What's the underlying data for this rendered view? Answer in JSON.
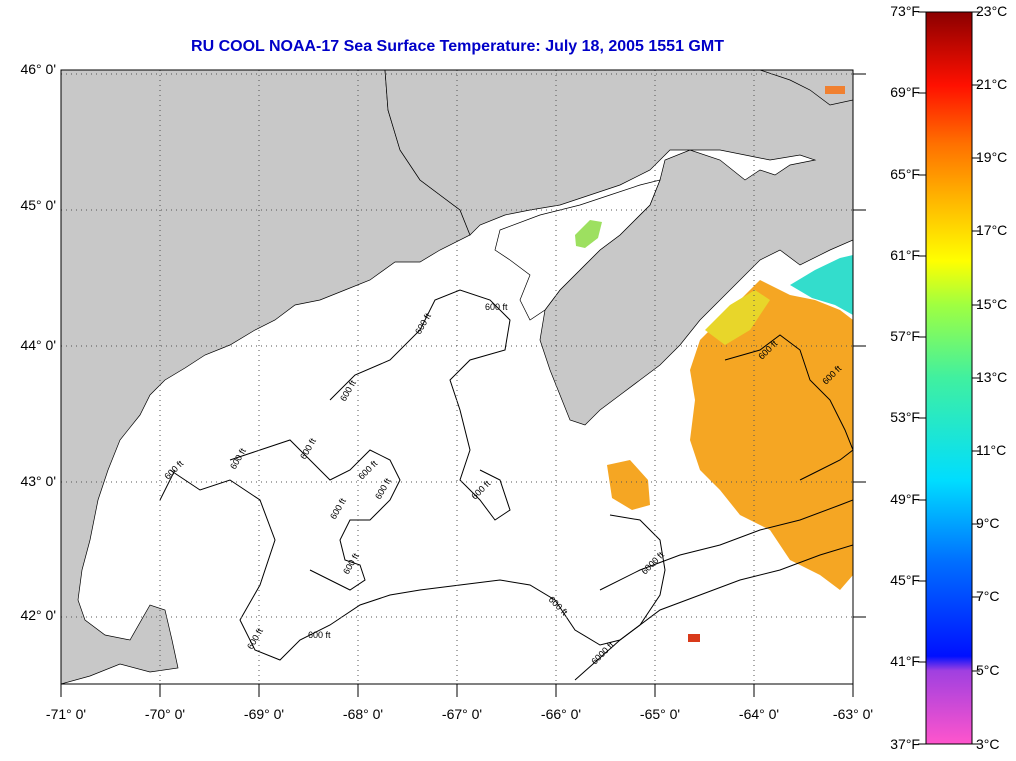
{
  "title": "RU COOL  NOAA-17  Sea Surface Temperature:  July 18, 2005 1551 GMT",
  "lat_labels": [
    "46° 0'",
    "45° 0'",
    "44° 0'",
    "43° 0'",
    "42° 0'"
  ],
  "lon_labels": [
    "-71° 0'",
    "-70° 0'",
    "-69° 0'",
    "-68° 0'",
    "-67° 0'",
    "-66° 0'",
    "-65° 0'",
    "-64° 0'",
    "-63° 0'"
  ],
  "contour_labels": [
    "600 ft",
    "600 ft",
    "600 ft",
    "600 ft",
    "600 ft",
    "600 ft",
    "600 ft",
    "600 ft",
    "600 ft",
    "600 ft",
    "600 ft",
    "600 ft",
    "600 ft",
    "6000 ft",
    "600 ft",
    "6000 ft",
    "600 ft",
    "600 ft"
  ],
  "colorbar": {
    "fahrenheit_labels": [
      "73°F",
      "69°F",
      "65°F",
      "61°F",
      "57°F",
      "53°F",
      "49°F",
      "45°F",
      "41°F",
      "37°F"
    ],
    "celsius_labels": [
      "23°C",
      "21°C",
      "19°C",
      "17°C",
      "15°C",
      "13°C",
      "11°C",
      "9°C",
      "7°C",
      "5°C",
      "3°C"
    ]
  },
  "colors": {
    "land": "#c8c8c8",
    "ocean": "#ffffff",
    "title": "#0000c8",
    "sst_warm": "#f5a623",
    "sst_cool": "#33ddcc"
  }
}
